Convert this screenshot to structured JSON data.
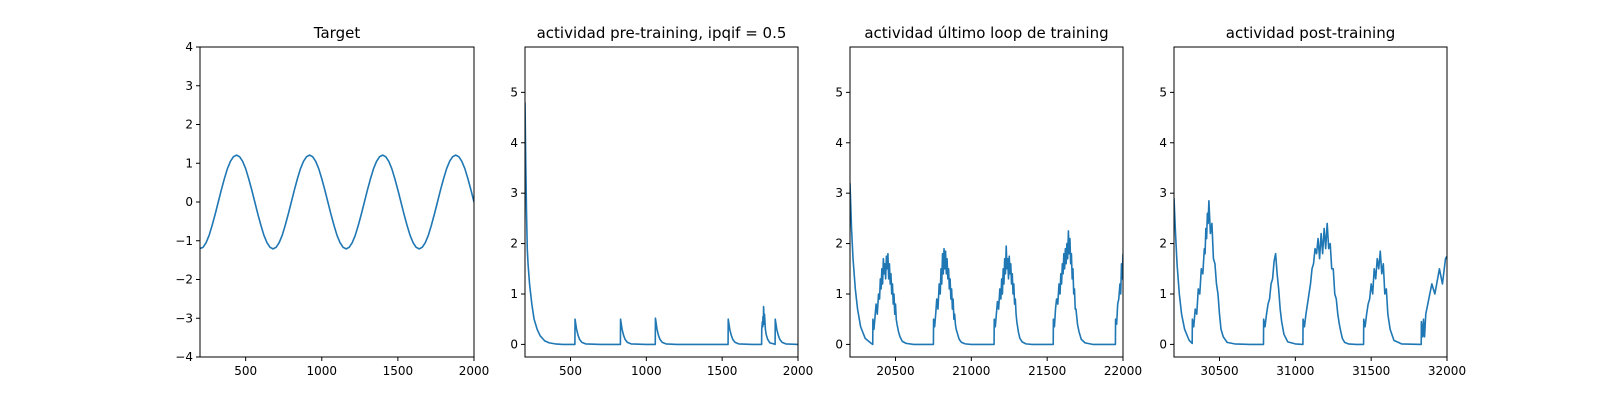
{
  "colors": {
    "series": "#1f77b4",
    "axes": "#000000",
    "background": "#ffffff"
  },
  "chart_data": [
    {
      "type": "line",
      "title": "Target",
      "xlabel": "",
      "ylabel": "",
      "xlim": [
        200,
        2000
      ],
      "ylim": [
        -4,
        4
      ],
      "xticks": [
        500,
        1000,
        1500,
        2000
      ],
      "yticks": [
        -4,
        -3,
        -2,
        -1,
        0,
        1,
        2,
        3,
        4
      ],
      "grid": false,
      "series": [
        {
          "x": [
            200,
            220,
            240,
            260,
            280,
            300,
            320,
            340,
            360,
            380,
            400,
            420,
            440,
            460,
            480,
            500,
            520,
            540,
            560,
            580,
            600,
            620,
            640,
            660,
            680,
            700,
            720,
            740,
            760,
            780,
            800,
            820,
            840,
            860,
            880,
            900,
            920,
            940,
            960,
            980,
            1000,
            1020,
            1040,
            1060,
            1080,
            1100,
            1120,
            1140,
            1160,
            1180,
            1200,
            1220,
            1240,
            1260,
            1280,
            1300,
            1320,
            1340,
            1360,
            1380,
            1400,
            1420,
            1440,
            1460,
            1480,
            1500,
            1520,
            1540,
            1560,
            1580,
            1600,
            1620,
            1640,
            1660,
            1680,
            1700,
            1720,
            1740,
            1760,
            1780,
            1800,
            1820,
            1840,
            1860,
            1880,
            1900,
            1920,
            1940,
            1960,
            1980,
            2000
          ],
          "y": [
            -1.2,
            -1.17,
            -1.05,
            -0.86,
            -0.6,
            -0.31,
            0,
            0.31,
            0.6,
            0.86,
            1.05,
            1.17,
            1.21,
            1.17,
            1.05,
            0.86,
            0.6,
            0.31,
            0,
            -0.31,
            -0.6,
            -0.86,
            -1.05,
            -1.17,
            -1.21,
            -1.17,
            -1.05,
            -0.86,
            -0.6,
            -0.31,
            0,
            0.31,
            0.6,
            0.86,
            1.05,
            1.17,
            1.21,
            1.17,
            1.05,
            0.86,
            0.6,
            0.31,
            0,
            -0.31,
            -0.6,
            -0.86,
            -1.05,
            -1.17,
            -1.21,
            -1.17,
            -1.05,
            -0.86,
            -0.6,
            -0.31,
            0,
            0.31,
            0.6,
            0.86,
            1.05,
            1.17,
            1.21,
            1.17,
            1.05,
            0.86,
            0.6,
            0.31,
            0,
            -0.31,
            -0.6,
            -0.86,
            -1.05,
            -1.17,
            -1.21,
            -1.17,
            -1.05,
            -0.86,
            -0.6,
            -0.31,
            0,
            0.31,
            0.6,
            0.86,
            1.05,
            1.17,
            1.21,
            1.17,
            1.05,
            0.86,
            0.6,
            0.31,
            0
          ]
        }
      ]
    },
    {
      "type": "line",
      "title": "actividad pre-training, ipqif = 0.5",
      "xlabel": "",
      "ylabel": "",
      "xlim": [
        200,
        2000
      ],
      "ylim": [
        -0.25,
        5.9
      ],
      "xticks": [
        500,
        1000,
        1500,
        2000
      ],
      "yticks": [
        0,
        1,
        2,
        3,
        4,
        5
      ],
      "grid": false,
      "series": [
        {
          "x": [
            200,
            205,
            210,
            215,
            220,
            230,
            245,
            260,
            280,
            300,
            330,
            360,
            400,
            450,
            500,
            529,
            530,
            535,
            540,
            550,
            560,
            575,
            600,
            700,
            800,
            829,
            830,
            835,
            840,
            850,
            860,
            875,
            900,
            1000,
            1050,
            1059,
            1060,
            1065,
            1070,
            1080,
            1090,
            1105,
            1130,
            1200,
            1300,
            1400,
            1500,
            1539,
            1540,
            1545,
            1550,
            1560,
            1570,
            1585,
            1610,
            1700,
            1760,
            1761,
            1765,
            1768,
            1769,
            1772,
            1773,
            1776,
            1778,
            1779,
            1782,
            1785,
            1790,
            1800,
            1815,
            1840,
            1849,
            1850,
            1855,
            1860,
            1870,
            1880,
            1895,
            1920,
            2000
          ],
          "y": [
            4.8,
            3.6,
            2.6,
            1.9,
            1.6,
            1.2,
            0.8,
            0.5,
            0.3,
            0.17,
            0.07,
            0.03,
            0.01,
            0,
            0,
            0,
            0.5,
            0.4,
            0.3,
            0.18,
            0.1,
            0.04,
            0.01,
            0,
            0,
            0,
            0.5,
            0.4,
            0.3,
            0.18,
            0.1,
            0.04,
            0.01,
            0,
            0,
            0,
            0.52,
            0.42,
            0.31,
            0.18,
            0.1,
            0.04,
            0.01,
            0,
            0,
            0,
            0,
            0,
            0.5,
            0.4,
            0.3,
            0.18,
            0.1,
            0.04,
            0.01,
            0,
            0,
            0.3,
            0.45,
            0.35,
            0.55,
            0.4,
            0.75,
            0.5,
            0.4,
            0.6,
            0.45,
            0.3,
            0.2,
            0.1,
            0.03,
            0.01,
            0,
            0.5,
            0.4,
            0.3,
            0.18,
            0.1,
            0.04,
            0.01,
            0
          ]
        }
      ]
    },
    {
      "type": "line",
      "title": "actividad último loop de training",
      "xlabel": "",
      "ylabel": "",
      "xlim": [
        20200,
        22000
      ],
      "ylim": [
        -0.25,
        5.9
      ],
      "xticks": [
        20500,
        21000,
        21500,
        22000
      ],
      "yticks": [
        0,
        1,
        2,
        3,
        4,
        5
      ],
      "grid": false,
      "series": [
        {
          "x": [
            20200,
            20210,
            20220,
            20235,
            20250,
            20270,
            20300,
            20340,
            20350,
            20351,
            20358,
            20365,
            20372,
            20380,
            20388,
            20395,
            20400,
            20405,
            20410,
            20415,
            20420,
            20425,
            20430,
            20435,
            20440,
            20445,
            20450,
            20455,
            20460,
            20465,
            20470,
            20475,
            20480,
            20485,
            20490,
            20495,
            20500,
            20505,
            20510,
            20520,
            20530,
            20545,
            20570,
            20620,
            20700,
            20750,
            20751,
            20758,
            20765,
            20772,
            20780,
            20788,
            20795,
            20800,
            20805,
            20810,
            20815,
            20820,
            20825,
            20830,
            20835,
            20840,
            20845,
            20850,
            20855,
            20860,
            20865,
            20870,
            20875,
            20880,
            20885,
            20890,
            20895,
            20900,
            20910,
            20920,
            20935,
            20960,
            21000,
            21100,
            21150,
            21151,
            21158,
            21165,
            21172,
            21180,
            21188,
            21195,
            21200,
            21205,
            21210,
            21215,
            21220,
            21225,
            21230,
            21235,
            21240,
            21245,
            21250,
            21255,
            21260,
            21265,
            21270,
            21275,
            21280,
            21285,
            21290,
            21295,
            21300,
            21310,
            21320,
            21335,
            21360,
            21400,
            21500,
            21540,
            21541,
            21548,
            21555,
            21562,
            21570,
            21578,
            21585,
            21590,
            21595,
            21600,
            21605,
            21610,
            21615,
            21620,
            21625,
            21630,
            21635,
            21640,
            21645,
            21650,
            21655,
            21660,
            21665,
            21670,
            21675,
            21680,
            21685,
            21690,
            21700,
            21710,
            21725,
            21750,
            21800,
            21900,
            21950,
            21951,
            21958,
            21965,
            21972,
            21980,
            21985,
            21990,
            21995,
            22000
          ],
          "y": [
            3.2,
            2.3,
            1.7,
            1.1,
            0.7,
            0.35,
            0.12,
            0.02,
            0,
            0.5,
            0.3,
            0.55,
            0.8,
            0.6,
            1.0,
            0.9,
            1.3,
            1.1,
            1.5,
            1.2,
            1.7,
            1.4,
            1.6,
            1.3,
            1.75,
            1.5,
            1.8,
            1.3,
            1.6,
            1.2,
            1.4,
            1.0,
            1.2,
            0.8,
            1.0,
            0.6,
            0.8,
            0.5,
            0.4,
            0.25,
            0.15,
            0.06,
            0.02,
            0,
            0,
            0,
            0.5,
            0.35,
            0.6,
            0.9,
            0.7,
            1.2,
            1.0,
            1.5,
            1.2,
            1.8,
            1.4,
            1.9,
            1.5,
            1.85,
            1.4,
            1.7,
            1.3,
            1.5,
            1.1,
            1.3,
            0.9,
            1.1,
            0.7,
            0.9,
            0.5,
            0.6,
            0.4,
            0.3,
            0.2,
            0.1,
            0.04,
            0.01,
            0,
            0,
            0,
            0.5,
            0.35,
            0.6,
            0.85,
            0.7,
            1.1,
            0.9,
            1.3,
            1.0,
            1.5,
            1.2,
            1.7,
            1.4,
            1.95,
            1.5,
            1.7,
            1.3,
            1.75,
            1.4,
            1.6,
            1.2,
            1.4,
            1.0,
            1.2,
            0.8,
            0.9,
            0.6,
            0.45,
            0.25,
            0.12,
            0.05,
            0.01,
            0,
            0,
            0,
            0.5,
            0.35,
            0.7,
            0.9,
            0.8,
            1.2,
            1.0,
            1.4,
            1.2,
            1.6,
            1.4,
            1.8,
            1.5,
            1.9,
            1.6,
            2.0,
            1.7,
            2.25,
            1.8,
            2.1,
            1.6,
            1.8,
            1.3,
            1.5,
            1.0,
            1.1,
            0.7,
            0.7,
            0.4,
            0.25,
            0.1,
            0.03,
            0,
            0,
            0,
            0.5,
            0.4,
            0.8,
            0.9,
            1.2,
            1.0,
            1.6,
            1.3,
            1.8
          ]
        }
      ]
    },
    {
      "type": "line",
      "title": "actividad post-training",
      "xlabel": "",
      "ylabel": "",
      "xlim": [
        30200,
        32000
      ],
      "ylim": [
        -0.25,
        5.9
      ],
      "xticks": [
        30500,
        31000,
        31500,
        32000
      ],
      "yticks": [
        0,
        1,
        2,
        3,
        4,
        5
      ],
      "grid": false,
      "series": [
        {
          "x": [
            30200,
            30210,
            30220,
            30235,
            30250,
            30270,
            30300,
            30320,
            30321,
            30330,
            30340,
            30350,
            30360,
            30370,
            30380,
            30390,
            30400,
            30405,
            30410,
            30415,
            30420,
            30425,
            30430,
            30440,
            30450,
            30460,
            30470,
            30480,
            30490,
            30500,
            30510,
            30525,
            30550,
            30600,
            30700,
            30790,
            30791,
            30800,
            30810,
            30820,
            30830,
            30840,
            30850,
            30860,
            30870,
            30880,
            30890,
            30900,
            30910,
            30925,
            30950,
            31000,
            31050,
            31051,
            31060,
            31070,
            31080,
            31090,
            31100,
            31110,
            31120,
            31130,
            31140,
            31150,
            31160,
            31170,
            31180,
            31190,
            31200,
            31210,
            31220,
            31230,
            31240,
            31250,
            31260,
            31270,
            31280,
            31290,
            31300,
            31310,
            31325,
            31350,
            31400,
            31450,
            31451,
            31460,
            31470,
            31480,
            31490,
            31500,
            31510,
            31520,
            31530,
            31540,
            31550,
            31560,
            31570,
            31580,
            31590,
            31600,
            31610,
            31625,
            31650,
            31700,
            31830,
            31831,
            31835,
            31840,
            31845,
            31850,
            31852,
            31860,
            31880,
            31900,
            31920,
            31950,
            31970,
            31990,
            32000
          ],
          "y": [
            2.9,
            2.2,
            1.6,
            1.0,
            0.6,
            0.3,
            0.08,
            0.02,
            0.5,
            0.35,
            0.7,
            0.6,
            1.1,
            1.0,
            1.5,
            1.4,
            1.9,
            1.8,
            2.3,
            2.1,
            2.6,
            2.4,
            2.85,
            2.2,
            2.4,
            1.7,
            1.6,
            1.2,
            1.0,
            0.6,
            0.3,
            0.15,
            0.04,
            0.01,
            0,
            0,
            0.5,
            0.35,
            0.6,
            0.8,
            0.9,
            1.2,
            1.3,
            1.65,
            1.8,
            1.4,
            1.1,
            0.7,
            0.45,
            0.2,
            0.05,
            0.01,
            0,
            0.5,
            0.35,
            0.6,
            0.8,
            1.0,
            1.2,
            1.5,
            1.6,
            1.9,
            1.8,
            2.1,
            1.7,
            2.2,
            1.8,
            2.3,
            1.9,
            2.4,
            1.9,
            2.0,
            1.5,
            1.5,
            1.0,
            0.9,
            0.6,
            0.4,
            0.25,
            0.12,
            0.04,
            0.01,
            0,
            0,
            0.5,
            0.35,
            0.6,
            0.8,
            0.9,
            1.2,
            1.0,
            1.5,
            1.3,
            1.7,
            1.5,
            1.85,
            1.4,
            1.6,
            1.0,
            1.1,
            0.6,
            0.3,
            0.08,
            0.01,
            0,
            0.45,
            0.3,
            0.15,
            0.5,
            0.2,
            0.15,
            0.6,
            0.9,
            1.2,
            1.0,
            1.5,
            1.2,
            1.7,
            1.75
          ]
        }
      ]
    }
  ]
}
